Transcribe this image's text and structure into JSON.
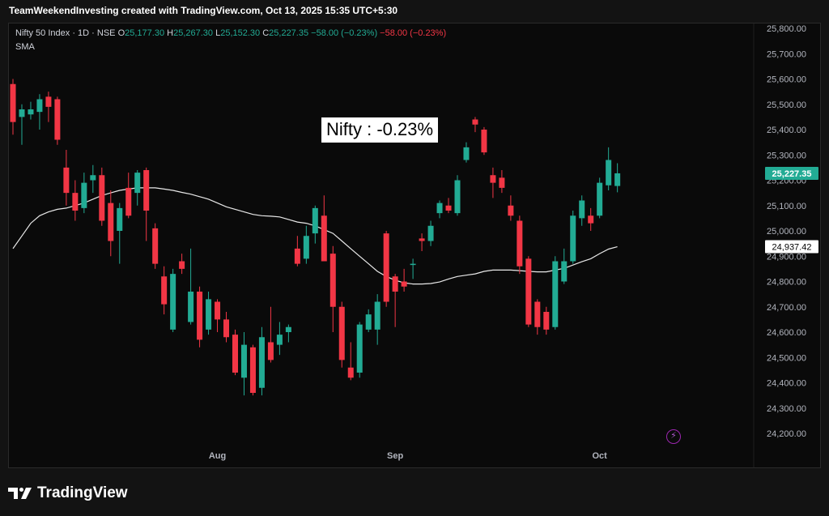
{
  "header": {
    "caption": "TeamWeekendInvesting created with TradingView.com, Oct 13, 2025 15:35 UTC+5:30"
  },
  "legend": {
    "symbol": "Nifty 50 Index · 1D · NSE",
    "open_label": "O",
    "open": "25,177.30",
    "high_label": "H",
    "high": "25,267.30",
    "low_label": "L",
    "low": "25,152.30",
    "close_label": "C",
    "close": "25,227.35",
    "change": "−58.00 (−0.23%)",
    "change2": "−58.00 (−0.23%)",
    "indicator": "SMA"
  },
  "annotation": "Nifty : -0.23%",
  "footer": {
    "brand": "TradingView"
  },
  "colors": {
    "up": "#22ab94",
    "down": "#f23645",
    "sma": "#e8e8e8",
    "background": "#0a0a0a"
  },
  "chart_data": {
    "type": "candlestick",
    "symbol": "Nifty 50 Index",
    "timeframe": "1D",
    "ylim": [
      24100,
      25850
    ],
    "ytick_labels": [
      "25,800.00",
      "25,700.00",
      "25,600.00",
      "25,500.00",
      "25,400.00",
      "25,300.00",
      "25,200.00",
      "25,100.00",
      "25,000.00",
      "24,900.00",
      "24,800.00",
      "24,700.00",
      "24,600.00",
      "24,500.00",
      "24,400.00",
      "24,300.00",
      "24,200.00"
    ],
    "ytick_values": [
      25800,
      25700,
      25600,
      25500,
      25400,
      25300,
      25200,
      25100,
      25000,
      24900,
      24800,
      24700,
      24600,
      24500,
      24400,
      24300,
      24200
    ],
    "xtick_labels": [
      {
        "label": "Aug",
        "index": 23
      },
      {
        "label": "Sep",
        "index": 43
      },
      {
        "label": "Oct",
        "index": 66
      }
    ],
    "last_price_label": "25,227.35",
    "last_price": 25227.35,
    "sma_price_label": "24,937.42",
    "sma_price": 24937.42,
    "candles": [
      {
        "o": 25580,
        "h": 25600,
        "l": 25380,
        "c": 25430
      },
      {
        "o": 25450,
        "h": 25500,
        "l": 25340,
        "c": 25480
      },
      {
        "o": 25460,
        "h": 25510,
        "l": 25440,
        "c": 25480
      },
      {
        "o": 25470,
        "h": 25540,
        "l": 25400,
        "c": 25520
      },
      {
        "o": 25530,
        "h": 25550,
        "l": 25430,
        "c": 25490
      },
      {
        "o": 25520,
        "h": 25530,
        "l": 25340,
        "c": 25360
      },
      {
        "o": 25250,
        "h": 25320,
        "l": 25100,
        "c": 25150
      },
      {
        "o": 25150,
        "h": 25200,
        "l": 25040,
        "c": 25080
      },
      {
        "o": 25090,
        "h": 25230,
        "l": 25070,
        "c": 25190
      },
      {
        "o": 25200,
        "h": 25260,
        "l": 25150,
        "c": 25220
      },
      {
        "o": 25220,
        "h": 25250,
        "l": 25020,
        "c": 25040
      },
      {
        "o": 25110,
        "h": 25160,
        "l": 24900,
        "c": 24960
      },
      {
        "o": 25000,
        "h": 25110,
        "l": 24870,
        "c": 25090
      },
      {
        "o": 25170,
        "h": 25230,
        "l": 25050,
        "c": 25060
      },
      {
        "o": 25150,
        "h": 25240,
        "l": 25100,
        "c": 25230
      },
      {
        "o": 25240,
        "h": 25250,
        "l": 24960,
        "c": 25080
      },
      {
        "o": 25010,
        "h": 25030,
        "l": 24850,
        "c": 24870
      },
      {
        "o": 24820,
        "h": 24860,
        "l": 24670,
        "c": 24710
      },
      {
        "o": 24610,
        "h": 24850,
        "l": 24600,
        "c": 24830
      },
      {
        "o": 24880,
        "h": 24910,
        "l": 24830,
        "c": 24850
      },
      {
        "o": 24640,
        "h": 24930,
        "l": 24630,
        "c": 24760
      },
      {
        "o": 24760,
        "h": 24780,
        "l": 24540,
        "c": 24570
      },
      {
        "o": 24610,
        "h": 24760,
        "l": 24590,
        "c": 24730
      },
      {
        "o": 24720,
        "h": 24730,
        "l": 24600,
        "c": 24650
      },
      {
        "o": 24650,
        "h": 24680,
        "l": 24560,
        "c": 24580
      },
      {
        "o": 24590,
        "h": 24610,
        "l": 24430,
        "c": 24440
      },
      {
        "o": 24420,
        "h": 24600,
        "l": 24350,
        "c": 24550
      },
      {
        "o": 24540,
        "h": 24550,
        "l": 24350,
        "c": 24360
      },
      {
        "o": 24380,
        "h": 24620,
        "l": 24350,
        "c": 24580
      },
      {
        "o": 24560,
        "h": 24700,
        "l": 24480,
        "c": 24490
      },
      {
        "o": 24550,
        "h": 24640,
        "l": 24510,
        "c": 24590
      },
      {
        "o": 24600,
        "h": 24630,
        "l": 24560,
        "c": 24620
      },
      {
        "o": 24930,
        "h": 24980,
        "l": 24860,
        "c": 24870
      },
      {
        "o": 24890,
        "h": 25020,
        "l": 24870,
        "c": 24980
      },
      {
        "o": 24990,
        "h": 25100,
        "l": 24950,
        "c": 25090
      },
      {
        "o": 25060,
        "h": 25140,
        "l": 24880,
        "c": 24880
      },
      {
        "o": 24910,
        "h": 24940,
        "l": 24600,
        "c": 24700
      },
      {
        "o": 24700,
        "h": 24720,
        "l": 24460,
        "c": 24490
      },
      {
        "o": 24460,
        "h": 24560,
        "l": 24410,
        "c": 24420
      },
      {
        "o": 24440,
        "h": 24640,
        "l": 24420,
        "c": 24630
      },
      {
        "o": 24610,
        "h": 24690,
        "l": 24600,
        "c": 24670
      },
      {
        "o": 24610,
        "h": 24750,
        "l": 24550,
        "c": 24720
      },
      {
        "o": 24990,
        "h": 25000,
        "l": 24700,
        "c": 24720
      },
      {
        "o": 24820,
        "h": 24830,
        "l": 24620,
        "c": 24760
      },
      {
        "o": 24800,
        "h": 24850,
        "l": 24760,
        "c": 24780
      },
      {
        "o": 24870,
        "h": 24890,
        "l": 24810,
        "c": 24870
      },
      {
        "o": 24970,
        "h": 24990,
        "l": 24920,
        "c": 24960
      },
      {
        "o": 24960,
        "h": 25040,
        "l": 24940,
        "c": 25020
      },
      {
        "o": 25070,
        "h": 25120,
        "l": 25050,
        "c": 25110
      },
      {
        "o": 25100,
        "h": 25130,
        "l": 25070,
        "c": 25080
      },
      {
        "o": 25070,
        "h": 25220,
        "l": 25060,
        "c": 25200
      },
      {
        "o": 25280,
        "h": 25350,
        "l": 25270,
        "c": 25330
      },
      {
        "o": 25440,
        "h": 25450,
        "l": 25390,
        "c": 25420
      },
      {
        "o": 25400,
        "h": 25410,
        "l": 25300,
        "c": 25310
      },
      {
        "o": 25220,
        "h": 25250,
        "l": 25130,
        "c": 25190
      },
      {
        "o": 25210,
        "h": 25240,
        "l": 25150,
        "c": 25170
      },
      {
        "o": 25100,
        "h": 25140,
        "l": 25040,
        "c": 25060
      },
      {
        "o": 25040,
        "h": 25060,
        "l": 24830,
        "c": 24860
      },
      {
        "o": 24890,
        "h": 24900,
        "l": 24620,
        "c": 24630
      },
      {
        "o": 24720,
        "h": 24730,
        "l": 24590,
        "c": 24620
      },
      {
        "o": 24680,
        "h": 24700,
        "l": 24590,
        "c": 24610
      },
      {
        "o": 24620,
        "h": 24900,
        "l": 24610,
        "c": 24880
      },
      {
        "o": 24800,
        "h": 24930,
        "l": 24790,
        "c": 24880
      },
      {
        "o": 24880,
        "h": 25080,
        "l": 24870,
        "c": 25060
      },
      {
        "o": 25050,
        "h": 25140,
        "l": 25020,
        "c": 25120
      },
      {
        "o": 25060,
        "h": 25090,
        "l": 25000,
        "c": 25030
      },
      {
        "o": 25060,
        "h": 25210,
        "l": 25050,
        "c": 25190
      },
      {
        "o": 25180,
        "h": 25330,
        "l": 25160,
        "c": 25280
      },
      {
        "o": 25177.3,
        "h": 25267.3,
        "l": 25152.3,
        "c": 25227.35
      }
    ],
    "sma": [
      24930,
      24980,
      25030,
      25060,
      25075,
      25085,
      25090,
      25100,
      25110,
      25125,
      25140,
      25150,
      25160,
      25165,
      25170,
      25170,
      25170,
      25165,
      25160,
      25152,
      25145,
      25135,
      25125,
      25110,
      25095,
      25085,
      25075,
      25065,
      25060,
      25058,
      25055,
      25045,
      25035,
      25030,
      25020,
      25005,
      24990,
      24960,
      24930,
      24900,
      24870,
      24840,
      24820,
      24805,
      24795,
      24790,
      24790,
      24792,
      24798,
      24810,
      24820,
      24825,
      24830,
      24840,
      24845,
      24845,
      24845,
      24843,
      24840,
      24838,
      24838,
      24845,
      24852,
      24865,
      24878,
      24890,
      24910,
      24928,
      24937.42
    ]
  }
}
